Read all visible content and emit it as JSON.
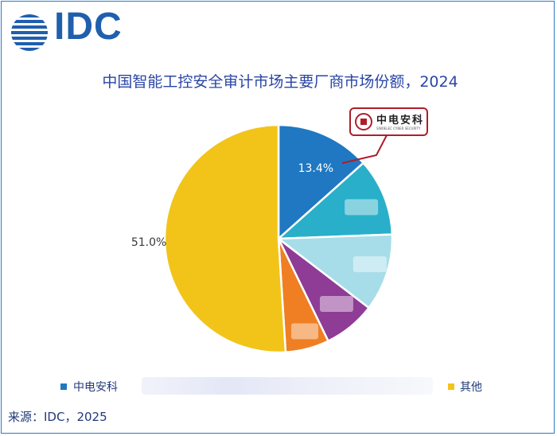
{
  "header": {
    "logo_text": "IDC",
    "title": "中国智能工控安全审计市场主要厂商市场份额，2024"
  },
  "callout": {
    "company_logo_text": "中电安科",
    "company_logo_subtext": "SINOELEC CYBER SECURITY"
  },
  "chart_data": {
    "type": "pie",
    "title": "中国智能工控安全审计市场主要厂商市场份额，2024",
    "slices": [
      {
        "name": "中电安科",
        "value": 13.4,
        "label": "13.4%",
        "color": "#1f78c1"
      },
      {
        "name": "",
        "value": 11.0,
        "label": "",
        "color": "#29afc9"
      },
      {
        "name": "",
        "value": 11.0,
        "label": "",
        "color": "#a7dde9"
      },
      {
        "name": "",
        "value": 7.4,
        "label": "",
        "color": "#8e3c96"
      },
      {
        "name": "",
        "value": 6.2,
        "label": "",
        "color": "#ef7f22"
      },
      {
        "name": "其他",
        "value": 51.0,
        "label": "51.0%",
        "color": "#f2c419"
      }
    ],
    "legend_placement": "bottom"
  },
  "legend": {
    "items": [
      {
        "label": "中电安科",
        "color": "#1f78c1"
      },
      {
        "label": "其他",
        "color": "#f2c419"
      }
    ]
  },
  "footer": {
    "source": "来源：IDC，2025"
  }
}
